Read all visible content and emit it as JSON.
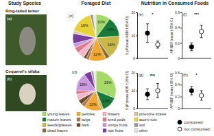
{
  "headers": {
    "study": "Study Species",
    "diet": "Foraged Diet",
    "nutrition": "Nutrition in Consumed Foods"
  },
  "species": [
    {
      "name": "Ring-tailed lemur",
      "panel": "(a)"
    },
    {
      "name": "Coquerel's sifaka",
      "panel": "(b)"
    }
  ],
  "diet_legend": {
    "categories": [
      "young leaves",
      "mature leaves",
      "seeds/grasses",
      "dead leaves",
      "petioles",
      "twigs",
      "bark",
      "flowers",
      "seed pods",
      "unripe fruits",
      "ripe fruits",
      "pinecone scales",
      "acorn nuts",
      "soil",
      "other"
    ],
    "colors": [
      "#a6d96a",
      "#1a7a3a",
      "#c8b84a",
      "#8c6d3a",
      "#f0a830",
      "#b07a50",
      "#6b4a2a",
      "#f4b6c8",
      "#e07a8a",
      "#c99adf",
      "#7a3f9a",
      "#d9c8a0",
      "#e8d23a",
      "#9a9a9a",
      "#e6e6e6"
    ]
  },
  "dot_legend": [
    {
      "name": "consumed",
      "color": "#000000"
    },
    {
      "name": "not consumed",
      "color": "#ffffff"
    }
  ],
  "chart_data": [
    {
      "type": "pie",
      "label": "(c)",
      "values": [
        10,
        14,
        16,
        3,
        12,
        2,
        2,
        5,
        4,
        3,
        7,
        2,
        16,
        2,
        2
      ],
      "value_labels": [
        "10%",
        "14%",
        "16%",
        null,
        "12%",
        null,
        null,
        null,
        null,
        null,
        null,
        null,
        "16%",
        null,
        null
      ]
    },
    {
      "type": "pie",
      "label": "(d)",
      "values": [
        31,
        13,
        2,
        1,
        13,
        3,
        4,
        5,
        3,
        15,
        6,
        0,
        0,
        2,
        2
      ],
      "value_labels": [
        "31%",
        "13%",
        null,
        null,
        "13%",
        null,
        null,
        null,
        null,
        "15%",
        null,
        null,
        null,
        null,
        null
      ]
    },
    {
      "type": "dot",
      "label": "(e)",
      "ylabel": "S:pP (mean %DM ± 95% CI)",
      "ylim": [
        0,
        20
      ],
      "yticks": [
        0,
        10,
        20
      ],
      "annotation": "*",
      "tick_labels": "y",
      "series": [
        {
          "values": [
            11
          ],
          "error": [
            4
          ],
          "color": "#000000"
        },
        {
          "values": [
            6
          ],
          "error": [
            1.5
          ],
          "color": "#ffffff"
        }
      ]
    },
    {
      "type": "dot",
      "label": "(f)",
      "ylabel": "AP:NDF (mean ± 95% CI)",
      "ylim": [
        0,
        0.6
      ],
      "yticks": [
        0,
        0.2,
        0.4,
        0.6
      ],
      "annotation": "***",
      "tick_labels": "y",
      "series": [
        {
          "values": [
            0.15
          ],
          "error": [
            0.05
          ],
          "color": "#000000"
        },
        {
          "values": [
            0.35
          ],
          "error": [
            0.08
          ],
          "color": "#ffffff"
        }
      ]
    },
    {
      "type": "dot",
      "label": "(g)",
      "ylabel": "S:pP (mean %DM ± 95% CI)",
      "ylim": [
        0,
        20
      ],
      "yticks": [
        0,
        10,
        20
      ],
      "annotation": "ns",
      "tick_labels": "y",
      "series": [
        {
          "values": [
            8
          ],
          "error": [
            3
          ],
          "color": "#000000"
        },
        {
          "values": [
            10
          ],
          "error": [
            4
          ],
          "color": "#ffffff"
        }
      ]
    },
    {
      "type": "dot",
      "label": "(h)",
      "ylabel": "AP:NDF (mean ± 95% CI)",
      "ylim": [
        0,
        0.6
      ],
      "yticks": [
        0,
        0.2,
        0.4,
        0.6
      ],
      "annotation": "*",
      "tick_labels": "y",
      "series": [
        {
          "values": [
            0.3
          ],
          "error": [
            0.07
          ],
          "color": "#000000"
        },
        {
          "values": [
            0.22
          ],
          "error": [
            0.08
          ],
          "color": "#ffffff"
        }
      ]
    }
  ]
}
